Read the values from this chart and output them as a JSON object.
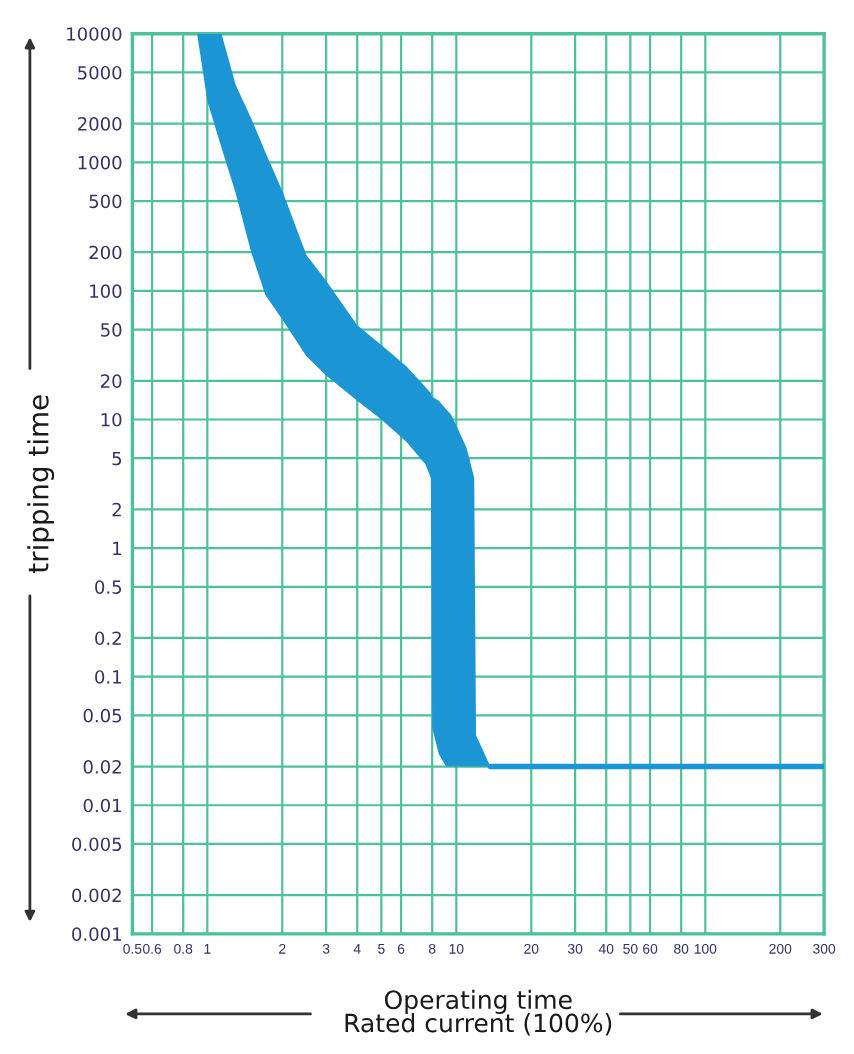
{
  "chart_data": {
    "type": "line",
    "xlabel": "Operating time\nRated current (100%)",
    "ylabel": "tripping time",
    "log": "xy",
    "grid": true,
    "marker": "none",
    "line_style": "solid",
    "xlim": [
      0.5,
      300
    ],
    "ylim": [
      0.001,
      10000
    ],
    "xticks": [
      0.5,
      0.6,
      0.8,
      1,
      2,
      3,
      4,
      5,
      6,
      8,
      10,
      20,
      30,
      40,
      50,
      60,
      80,
      100,
      200,
      300
    ],
    "yticks": [
      0.001,
      0.002,
      0.005,
      0.01,
      0.02,
      0.05,
      0.1,
      0.2,
      0.5,
      1,
      2,
      5,
      10,
      20,
      50,
      100,
      200,
      500,
      1000,
      2000,
      5000,
      10000
    ],
    "series": [
      {
        "color": "#1b95d4",
        "x": [
          0.91,
          1.0,
          1.14,
          1.3,
          1.5,
          1.71,
          2.0,
          2.5,
          3.0,
          4.0,
          5.0,
          6.3,
          7.5,
          7.9,
          8.0,
          8.5,
          9.1,
          9.5,
          10,
          11,
          11.8,
          12,
          13.7,
          20,
          50,
          100,
          300
        ],
        "values": [
          null,
          null,
          null,
          null,
          null,
          null,
          null,
          null,
          null,
          null,
          null,
          null,
          null,
          null,
          null,
          null,
          null,
          null,
          null,
          null,
          null,
          null,
          0.02,
          0.02,
          0.02,
          0.02,
          0.02
        ],
        "lower": [
          10000,
          3000,
          1300,
          575,
          200,
          93,
          60,
          31,
          22,
          14,
          10,
          6.7,
          4.5,
          3.5,
          0.04,
          0.025,
          0.02,
          0.02,
          0.02,
          0.02,
          0.02,
          0.02,
          0.02,
          null,
          null,
          null,
          null
        ],
        "upper": [
          10000,
          10000,
          10000,
          4000,
          2200,
          1200,
          600,
          190,
          120,
          54,
          38,
          26,
          18,
          16,
          15,
          14,
          12,
          11,
          9,
          6,
          3.5,
          0.035,
          0.02,
          null,
          null,
          null,
          null
        ]
      }
    ]
  }
}
